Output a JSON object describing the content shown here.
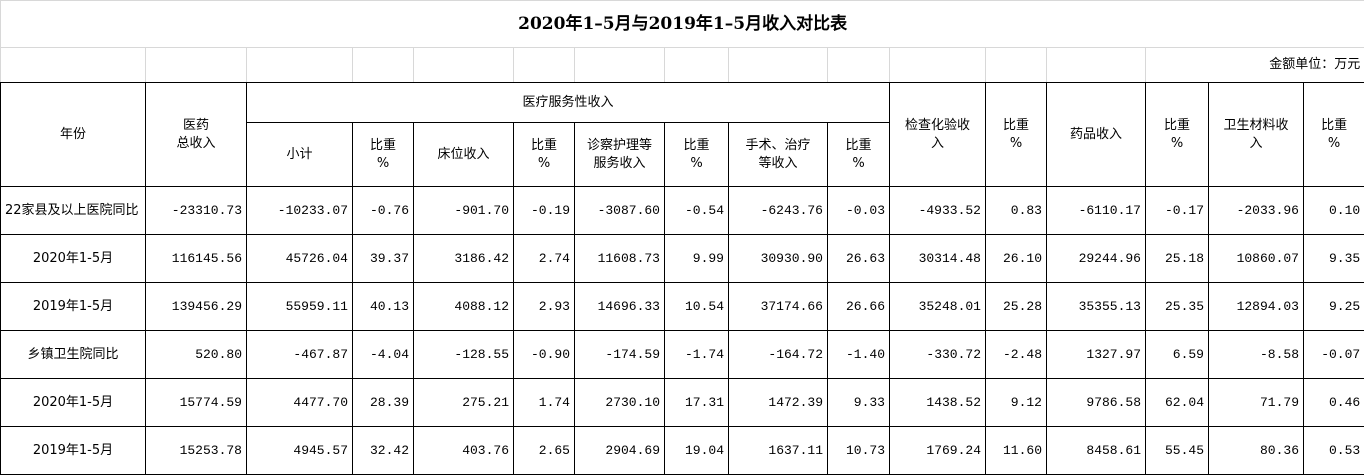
{
  "header": {
    "title": "2020年1–5月与2019年1–5月收入对比表",
    "unit": "金额单位：万元"
  },
  "table": {
    "group_header": "医疗服务性收入",
    "lead_columns": [
      "年份",
      "医药\n总收入"
    ],
    "group_columns": [
      "小计",
      "比重\n%",
      "床位收入",
      "比重\n%",
      "诊察护理等\n服务收入",
      "比重\n%",
      "手术、治疗\n等收入",
      "比重\n%"
    ],
    "tail_columns": [
      "检查化验收\n入",
      "比重\n%",
      "药品收入",
      "比重\n%",
      "卫生材料收\n入",
      "比重\n%"
    ],
    "rows": [
      [
        "22家县及以上医院同比",
        "-23310.73",
        "-10233.07",
        "-0.76",
        "-901.70",
        "-0.19",
        "-3087.60",
        "-0.54",
        "-6243.76",
        "-0.03",
        "-4933.52",
        "0.83",
        "-6110.17",
        "-0.17",
        "-2033.96",
        "0.10"
      ],
      [
        "2020年1-5月",
        "116145.56",
        "45726.04",
        "39.37",
        "3186.42",
        "2.74",
        "11608.73",
        "9.99",
        "30930.90",
        "26.63",
        "30314.48",
        "26.10",
        "29244.96",
        "25.18",
        "10860.07",
        "9.35"
      ],
      [
        "2019年1-5月",
        "139456.29",
        "55959.11",
        "40.13",
        "4088.12",
        "2.93",
        "14696.33",
        "10.54",
        "37174.66",
        "26.66",
        "35248.01",
        "25.28",
        "35355.13",
        "25.35",
        "12894.03",
        "9.25"
      ],
      [
        "乡镇卫生院同比",
        "520.80",
        "-467.87",
        "-4.04",
        "-128.55",
        "-0.90",
        "-174.59",
        "-1.74",
        "-164.72",
        "-1.40",
        "-330.72",
        "-2.48",
        "1327.97",
        "6.59",
        "-8.58",
        "-0.07"
      ],
      [
        "2020年1-5月",
        "15774.59",
        "4477.70",
        "28.39",
        "275.21",
        "1.74",
        "2730.10",
        "17.31",
        "1472.39",
        "9.33",
        "1438.52",
        "9.12",
        "9786.58",
        "62.04",
        "71.79",
        "0.46"
      ],
      [
        "2019年1-5月",
        "15253.78",
        "4945.57",
        "32.42",
        "403.76",
        "2.65",
        "2904.69",
        "19.04",
        "1637.11",
        "10.73",
        "1769.24",
        "11.60",
        "8458.61",
        "55.45",
        "80.36",
        "0.53"
      ]
    ]
  }
}
